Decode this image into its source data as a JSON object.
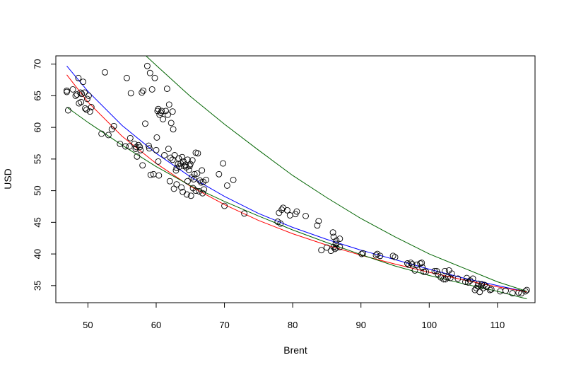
{
  "chart_data": {
    "type": "scatter",
    "xlabel": "Brent",
    "ylabel": "USD",
    "xlim": [
      45.3,
      115.5
    ],
    "ylim": [
      32.3,
      71.3
    ],
    "xticks": [
      50,
      60,
      70,
      80,
      90,
      100,
      110
    ],
    "yticks": [
      35,
      40,
      45,
      50,
      55,
      60,
      65,
      70
    ],
    "grid": false,
    "points": [
      [
        46.9,
        65.8
      ],
      [
        46.9,
        65.6
      ],
      [
        47.1,
        62.7
      ],
      [
        47.8,
        66.0
      ],
      [
        48.2,
        65.0
      ],
      [
        48.4,
        65.2
      ],
      [
        48.6,
        67.8
      ],
      [
        48.7,
        63.8
      ],
      [
        48.9,
        65.5
      ],
      [
        49.0,
        64.0
      ],
      [
        49.1,
        65.3
      ],
      [
        49.3,
        67.2
      ],
      [
        49.5,
        65.5
      ],
      [
        49.6,
        63.0
      ],
      [
        49.8,
        62.8
      ],
      [
        49.9,
        64.5
      ],
      [
        50.1,
        65.0
      ],
      [
        50.3,
        62.5
      ],
      [
        50.5,
        63.2
      ],
      [
        52.0,
        59.0
      ],
      [
        52.5,
        68.7
      ],
      [
        53.0,
        58.8
      ],
      [
        53.5,
        59.7
      ],
      [
        53.8,
        60.2
      ],
      [
        54.7,
        57.4
      ],
      [
        55.5,
        57.0
      ],
      [
        55.7,
        67.8
      ],
      [
        56.1,
        57.0
      ],
      [
        56.2,
        58.3
      ],
      [
        56.3,
        65.4
      ],
      [
        56.8,
        57.4
      ],
      [
        57.0,
        56.6
      ],
      [
        57.1,
        56.9
      ],
      [
        57.2,
        55.4
      ],
      [
        57.4,
        57.2
      ],
      [
        57.6,
        56.9
      ],
      [
        57.7,
        56.4
      ],
      [
        57.9,
        65.5
      ],
      [
        58.0,
        54.0
      ],
      [
        58.1,
        65.8
      ],
      [
        58.4,
        60.6
      ],
      [
        58.7,
        69.7
      ],
      [
        58.9,
        57.1
      ],
      [
        59.0,
        56.7
      ],
      [
        59.1,
        68.6
      ],
      [
        59.2,
        52.5
      ],
      [
        59.4,
        66.0
      ],
      [
        59.6,
        52.6
      ],
      [
        59.8,
        67.8
      ],
      [
        60.0,
        56.4
      ],
      [
        60.1,
        58.4
      ],
      [
        60.2,
        62.6
      ],
      [
        60.3,
        62.9
      ],
      [
        60.3,
        54.6
      ],
      [
        60.4,
        52.4
      ],
      [
        60.5,
        62.0
      ],
      [
        60.7,
        62.3
      ],
      [
        60.8,
        62.6
      ],
      [
        61.0,
        61.3
      ],
      [
        61.2,
        55.6
      ],
      [
        61.4,
        62.6
      ],
      [
        61.6,
        66.1
      ],
      [
        61.7,
        62.0
      ],
      [
        61.8,
        56.6
      ],
      [
        61.9,
        63.6
      ],
      [
        62.0,
        51.5
      ],
      [
        62.1,
        55.2
      ],
      [
        62.2,
        60.7
      ],
      [
        62.4,
        62.5
      ],
      [
        62.4,
        54.9
      ],
      [
        62.5,
        59.7
      ],
      [
        62.6,
        50.3
      ],
      [
        62.7,
        55.6
      ],
      [
        62.9,
        53.2
      ],
      [
        63.0,
        53.6
      ],
      [
        63.0,
        51.0
      ],
      [
        63.2,
        54.2
      ],
      [
        63.3,
        55.1
      ],
      [
        63.4,
        53.8
      ],
      [
        63.6,
        54.3
      ],
      [
        63.7,
        50.5
      ],
      [
        63.8,
        55.3
      ],
      [
        63.9,
        49.8
      ],
      [
        64.0,
        54.6
      ],
      [
        64.1,
        53.9
      ],
      [
        64.3,
        54.1
      ],
      [
        64.4,
        53.7
      ],
      [
        64.5,
        49.4
      ],
      [
        64.6,
        51.5
      ],
      [
        64.6,
        54.9
      ],
      [
        64.8,
        53.3
      ],
      [
        64.9,
        53.9
      ],
      [
        65.0,
        54.2
      ],
      [
        65.1,
        49.2
      ],
      [
        65.2,
        52.1
      ],
      [
        65.3,
        54.8
      ],
      [
        65.4,
        50.4
      ],
      [
        65.5,
        51.8
      ],
      [
        65.6,
        52.6
      ],
      [
        65.8,
        56.0
      ],
      [
        65.8,
        50.0
      ],
      [
        66.0,
        52.7
      ],
      [
        66.1,
        55.9
      ],
      [
        66.3,
        49.9
      ],
      [
        66.4,
        51.6
      ],
      [
        66.6,
        51.3
      ],
      [
        66.7,
        53.2
      ],
      [
        66.8,
        49.6
      ],
      [
        66.9,
        51.4
      ],
      [
        67.0,
        50.2
      ],
      [
        67.3,
        51.7
      ],
      [
        69.2,
        52.6
      ],
      [
        69.8,
        54.3
      ],
      [
        70.0,
        47.6
      ],
      [
        70.4,
        50.8
      ],
      [
        71.3,
        51.7
      ],
      [
        72.9,
        46.4
      ],
      [
        77.8,
        45.1
      ],
      [
        78.0,
        46.5
      ],
      [
        78.2,
        44.8
      ],
      [
        78.4,
        47.0
      ],
      [
        78.6,
        47.3
      ],
      [
        79.2,
        46.9
      ],
      [
        79.6,
        46.1
      ],
      [
        80.4,
        46.3
      ],
      [
        80.6,
        46.7
      ],
      [
        81.9,
        46.0
      ],
      [
        83.6,
        44.5
      ],
      [
        83.8,
        45.2
      ],
      [
        84.2,
        40.6
      ],
      [
        85.0,
        41.0
      ],
      [
        85.6,
        40.5
      ],
      [
        85.9,
        43.4
      ],
      [
        86.0,
        41.1
      ],
      [
        86.0,
        42.7
      ],
      [
        86.2,
        40.8
      ],
      [
        86.3,
        41.6
      ],
      [
        86.4,
        41.0
      ],
      [
        86.4,
        42.1
      ],
      [
        86.9,
        42.4
      ],
      [
        86.9,
        41.1
      ],
      [
        90.1,
        40.0
      ],
      [
        90.3,
        40.1
      ],
      [
        92.2,
        39.8
      ],
      [
        92.4,
        40.0
      ],
      [
        92.8,
        39.7
      ],
      [
        94.7,
        39.7
      ],
      [
        95.0,
        39.5
      ],
      [
        96.8,
        38.5
      ],
      [
        97.0,
        38.3
      ],
      [
        97.3,
        38.6
      ],
      [
        97.5,
        38.4
      ],
      [
        97.9,
        37.4
      ],
      [
        98.2,
        38.3
      ],
      [
        98.7,
        38.5
      ],
      [
        98.9,
        38.6
      ],
      [
        99.0,
        37.9
      ],
      [
        99.2,
        37.2
      ],
      [
        99.5,
        37.2
      ],
      [
        100.8,
        37.3
      ],
      [
        101.1,
        37.3
      ],
      [
        101.3,
        36.8
      ],
      [
        101.7,
        36.3
      ],
      [
        102.1,
        36.0
      ],
      [
        102.3,
        37.3
      ],
      [
        102.4,
        36.0
      ],
      [
        102.7,
        36.3
      ],
      [
        102.9,
        37.4
      ],
      [
        103.1,
        36.2
      ],
      [
        103.3,
        36.9
      ],
      [
        104.2,
        36.1
      ],
      [
        105.3,
        35.6
      ],
      [
        105.5,
        36.2
      ],
      [
        105.7,
        35.5
      ],
      [
        106.0,
        35.8
      ],
      [
        106.4,
        36.1
      ],
      [
        106.7,
        34.3
      ],
      [
        106.9,
        34.6
      ],
      [
        107.1,
        34.9
      ],
      [
        107.2,
        35.3
      ],
      [
        107.4,
        34.0
      ],
      [
        107.6,
        34.9
      ],
      [
        107.7,
        35.2
      ],
      [
        107.9,
        34.6
      ],
      [
        108.1,
        35.1
      ],
      [
        108.4,
        34.8
      ],
      [
        108.9,
        34.3
      ],
      [
        109.1,
        34.4
      ],
      [
        110.4,
        34.1
      ],
      [
        111.2,
        34.2
      ],
      [
        112.2,
        33.8
      ],
      [
        113.1,
        33.9
      ],
      [
        113.5,
        33.8
      ],
      [
        114.1,
        34.1
      ],
      [
        114.3,
        34.3
      ]
    ],
    "curves": [
      {
        "color": "#0000ff",
        "x": [
          46.9,
          50,
          55,
          60,
          65,
          70,
          75,
          80,
          85,
          90,
          95,
          100,
          105,
          110,
          114.3
        ],
        "y": [
          69.7,
          65.7,
          60.3,
          55.9,
          52.2,
          49.1,
          46.4,
          44.2,
          42.3,
          40.6,
          39.1,
          37.6,
          36.2,
          35.0,
          34.0
        ]
      },
      {
        "color": "#ff0000",
        "x": [
          46.9,
          50,
          55,
          60,
          65,
          70,
          75,
          80,
          85,
          90,
          95,
          100,
          105,
          110,
          114.3
        ],
        "y": [
          68.3,
          64.0,
          58.6,
          54.3,
          50.7,
          47.8,
          45.3,
          43.2,
          41.4,
          39.8,
          38.4,
          37.1,
          35.9,
          34.8,
          34.0
        ]
      },
      {
        "color": "#006400",
        "x": [
          58.3,
          60,
          65,
          70,
          75,
          80,
          85,
          90,
          95,
          100,
          105,
          110,
          114.3
        ],
        "y": [
          71.5,
          69.8,
          64.9,
          60.5,
          56.4,
          52.4,
          48.9,
          45.6,
          42.7,
          40.0,
          37.8,
          35.6,
          34.1
        ]
      },
      {
        "color": "#006400",
        "x": [
          46.9,
          50,
          55,
          60,
          65,
          70,
          75,
          80,
          85,
          90,
          95,
          100,
          105,
          110,
          114.3
        ],
        "y": [
          63.2,
          60.8,
          57.2,
          53.8,
          50.8,
          48.3,
          46.0,
          43.8,
          41.8,
          39.9,
          38.1,
          36.6,
          35.3,
          34.1,
          32.9
        ]
      }
    ]
  }
}
